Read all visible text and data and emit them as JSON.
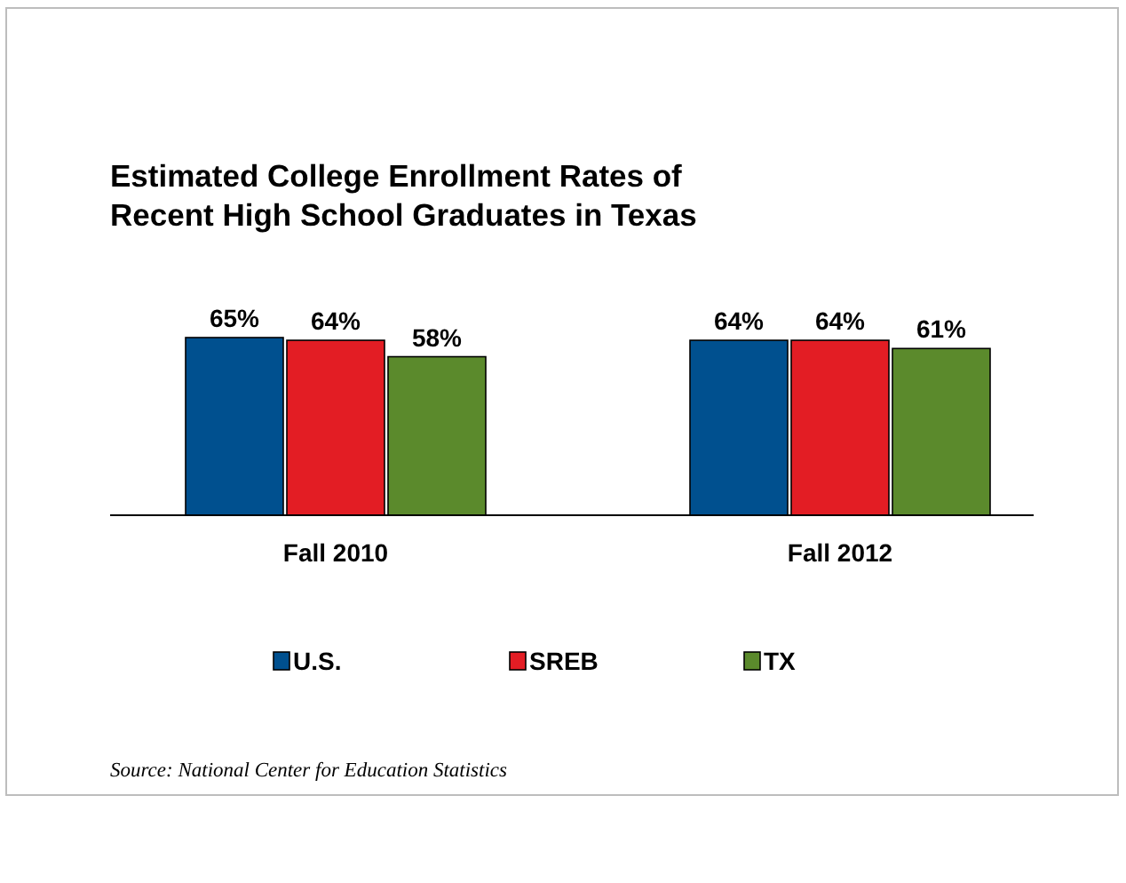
{
  "chart_data": {
    "type": "bar",
    "title": "Estimated College Enrollment Rates of\nRecent High School Graduates in Texas",
    "categories": [
      "Fall 2010",
      "Fall 2012"
    ],
    "series": [
      {
        "name": "U.S.",
        "color": "#00508f",
        "values": [
          65,
          64
        ],
        "value_labels": [
          "65%",
          "64%"
        ]
      },
      {
        "name": "SREB",
        "color": "#e31d24",
        "values": [
          64,
          64
        ],
        "value_labels": [
          "64%",
          "64%"
        ]
      },
      {
        "name": "TX",
        "color": "#5b8a2c",
        "values": [
          58,
          61
        ],
        "value_labels": [
          "58%",
          "61%"
        ]
      }
    ],
    "legend": "bottom",
    "annotations": [
      "Source: National Center for Education Statistics"
    ]
  }
}
